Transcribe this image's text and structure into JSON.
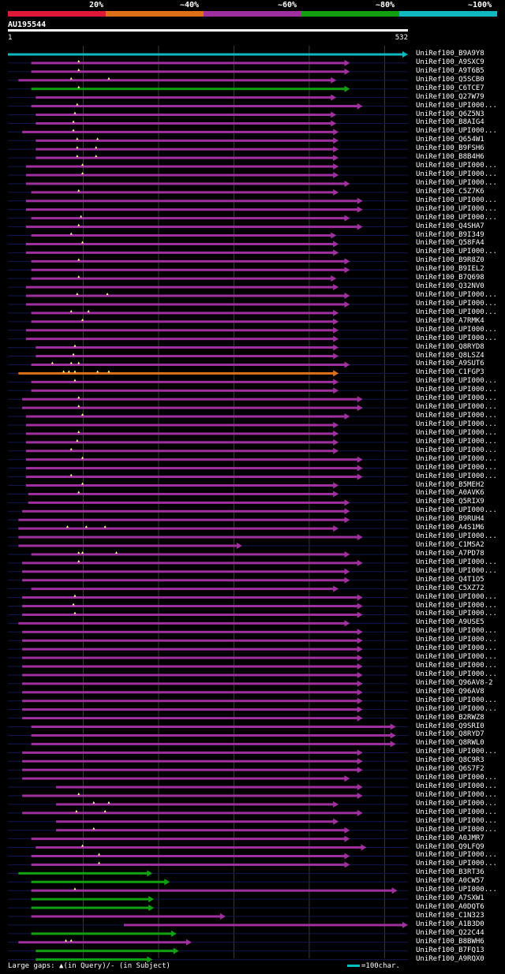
{
  "scale": {
    "labels": [
      "20%",
      "~40%",
      "~60%",
      "~80%",
      "~100%"
    ],
    "colors": [
      "#e01838",
      "#e07018",
      "#a030a0",
      "#10a010",
      "#10b8c0"
    ]
  },
  "query": {
    "name": "AU195544",
    "start": "1",
    "end": "532",
    "length": 532
  },
  "hits": [
    {
      "label": "UniRef100_B9A9Y8",
      "start": 1,
      "end": 532,
      "color": "#10b8c0"
    },
    {
      "label": "UniRef100_A9SXC9",
      "start": 32,
      "end": 455,
      "color": "#a030a0",
      "inserts": [
        95
      ]
    },
    {
      "label": "UniRef100_A9T6B5",
      "start": 32,
      "end": 455,
      "color": "#a030a0",
      "inserts": [
        95
      ]
    },
    {
      "label": "UniRef100_Q5SCB0",
      "start": 15,
      "end": 437,
      "color": "#a030a0",
      "inserts": [
        85,
        135
      ]
    },
    {
      "label": "UniRef100_C6TCE7",
      "start": 32,
      "end": 455,
      "color": "#10a010",
      "inserts": [
        95
      ]
    },
    {
      "label": "UniRef100_Q27W79",
      "start": 38,
      "end": 437,
      "color": "#a030a0"
    },
    {
      "label": "UniRef100_UPI000...",
      "start": 32,
      "end": 472,
      "color": "#a030a0",
      "inserts": [
        93
      ]
    },
    {
      "label": "UniRef100_Q6Z5N3",
      "start": 38,
      "end": 437,
      "color": "#a030a0",
      "inserts": [
        90
      ]
    },
    {
      "label": "UniRef100_B8AIG4",
      "start": 38,
      "end": 437,
      "color": "#a030a0",
      "inserts": [
        88
      ]
    },
    {
      "label": "UniRef100_UPI000...",
      "start": 20,
      "end": 440,
      "color": "#a030a0",
      "inserts": [
        88
      ]
    },
    {
      "label": "UniRef100_Q654W1",
      "start": 38,
      "end": 440,
      "color": "#a030a0",
      "inserts": [
        93,
        120
      ]
    },
    {
      "label": "UniRef100_B9FSH6",
      "start": 38,
      "end": 440,
      "color": "#a030a0",
      "inserts": [
        93,
        118
      ]
    },
    {
      "label": "UniRef100_B8B4H6",
      "start": 38,
      "end": 440,
      "color": "#a030a0",
      "inserts": [
        93,
        118
      ]
    },
    {
      "label": "UniRef100_UPI000...",
      "start": 25,
      "end": 440,
      "color": "#a030a0",
      "inserts": [
        100
      ]
    },
    {
      "label": "UniRef100_UPI000...",
      "start": 25,
      "end": 440,
      "color": "#a030a0",
      "inserts": [
        100
      ]
    },
    {
      "label": "UniRef100_UPI000...",
      "start": 25,
      "end": 455,
      "color": "#a030a0"
    },
    {
      "label": "UniRef100_C5Z7K6",
      "start": 32,
      "end": 440,
      "color": "#a030a0",
      "inserts": [
        95
      ]
    },
    {
      "label": "UniRef100_UPI000...",
      "start": 25,
      "end": 472,
      "color": "#a030a0"
    },
    {
      "label": "UniRef100_UPI000...",
      "start": 25,
      "end": 472,
      "color": "#a030a0"
    },
    {
      "label": "UniRef100_UPI000...",
      "start": 32,
      "end": 455,
      "color": "#a030a0",
      "inserts": [
        98
      ]
    },
    {
      "label": "UniRef100_Q4SHA7",
      "start": 25,
      "end": 472,
      "color": "#a030a0",
      "inserts": [
        95
      ]
    },
    {
      "label": "UniRef100_B9I349",
      "start": 32,
      "end": 437,
      "color": "#a030a0",
      "inserts": [
        85
      ]
    },
    {
      "label": "UniRef100_Q58FA4",
      "start": 25,
      "end": 440,
      "color": "#a030a0",
      "inserts": [
        100
      ]
    },
    {
      "label": "UniRef100_UPI000...",
      "start": 25,
      "end": 440,
      "color": "#a030a0"
    },
    {
      "label": "UniRef100_B9R8Z0",
      "start": 32,
      "end": 455,
      "color": "#a030a0",
      "inserts": [
        95
      ]
    },
    {
      "label": "UniRef100_B9IEL2",
      "start": 32,
      "end": 455,
      "color": "#a030a0"
    },
    {
      "label": "UniRef100_B7Q698",
      "start": 32,
      "end": 437,
      "color": "#a030a0",
      "inserts": [
        95
      ]
    },
    {
      "label": "UniRef100_Q32NV0",
      "start": 25,
      "end": 440,
      "color": "#a030a0"
    },
    {
      "label": "UniRef100_UPI000...",
      "start": 25,
      "end": 455,
      "color": "#a030a0",
      "inserts": [
        93,
        133
      ]
    },
    {
      "label": "UniRef100_UPI000...",
      "start": 25,
      "end": 455,
      "color": "#a030a0"
    },
    {
      "label": "UniRef100_UPI000...",
      "start": 32,
      "end": 440,
      "color": "#a030a0",
      "inserts": [
        85,
        108
      ]
    },
    {
      "label": "UniRef100_A7RMK4",
      "start": 32,
      "end": 440,
      "color": "#a030a0",
      "inserts": [
        100
      ]
    },
    {
      "label": "UniRef100_UPI000...",
      "start": 25,
      "end": 440,
      "color": "#a030a0"
    },
    {
      "label": "UniRef100_UPI000...",
      "start": 25,
      "end": 440,
      "color": "#a030a0"
    },
    {
      "label": "UniRef100_Q8RYD8",
      "start": 38,
      "end": 440,
      "color": "#a030a0",
      "inserts": [
        90
      ]
    },
    {
      "label": "UniRef100_Q8LSZ4",
      "start": 38,
      "end": 440,
      "color": "#a030a0",
      "inserts": [
        88
      ]
    },
    {
      "label": "UniRef100_A9SUT6",
      "start": 32,
      "end": 455,
      "color": "#a030a0",
      "inserts": [
        60,
        85,
        95
      ]
    },
    {
      "label": "UniRef100_C1FGP3",
      "start": 15,
      "end": 440,
      "color": "#e07018",
      "inserts": [
        75,
        82,
        90,
        120,
        135
      ]
    },
    {
      "label": "UniRef100_UPI000...",
      "start": 32,
      "end": 440,
      "color": "#a030a0",
      "inserts": [
        90
      ]
    },
    {
      "label": "UniRef100_UPI000...",
      "start": 32,
      "end": 440,
      "color": "#a030a0"
    },
    {
      "label": "UniRef100_UPI000...",
      "start": 20,
      "end": 472,
      "color": "#a030a0",
      "inserts": [
        95
      ]
    },
    {
      "label": "UniRef100_UPI000...",
      "start": 20,
      "end": 472,
      "color": "#a030a0",
      "inserts": [
        95
      ]
    },
    {
      "label": "UniRef100_UPI000...",
      "start": 25,
      "end": 455,
      "color": "#a030a0",
      "inserts": [
        100
      ]
    },
    {
      "label": "UniRef100_UPI000...",
      "start": 25,
      "end": 440,
      "color": "#a030a0"
    },
    {
      "label": "UniRef100_UPI000...",
      "start": 25,
      "end": 440,
      "color": "#a030a0",
      "inserts": [
        95
      ]
    },
    {
      "label": "UniRef100_UPI000...",
      "start": 25,
      "end": 440,
      "color": "#a030a0",
      "inserts": [
        93
      ]
    },
    {
      "label": "UniRef100_UPI000...",
      "start": 25,
      "end": 440,
      "color": "#a030a0",
      "inserts": [
        85
      ]
    },
    {
      "label": "UniRef100_UPI000...",
      "start": 25,
      "end": 472,
      "color": "#a030a0",
      "inserts": [
        100
      ]
    },
    {
      "label": "UniRef100_UPI000...",
      "start": 25,
      "end": 472,
      "color": "#a030a0"
    },
    {
      "label": "UniRef100_UPI000...",
      "start": 25,
      "end": 472,
      "color": "#a030a0",
      "inserts": [
        85
      ]
    },
    {
      "label": "UniRef100_B5MEH2",
      "start": 25,
      "end": 440,
      "color": "#a030a0",
      "inserts": [
        100
      ]
    },
    {
      "label": "UniRef100_A0AVK6",
      "start": 28,
      "end": 440,
      "color": "#a030a0",
      "inserts": [
        95
      ]
    },
    {
      "label": "UniRef100_Q5RIX9",
      "start": 28,
      "end": 455,
      "color": "#a030a0"
    },
    {
      "label": "UniRef100_UPI000...",
      "start": 20,
      "end": 455,
      "color": "#a030a0"
    },
    {
      "label": "UniRef100_B9RUH4",
      "start": 15,
      "end": 455,
      "color": "#a030a0"
    },
    {
      "label": "UniRef100_A4S1M6",
      "start": 15,
      "end": 440,
      "color": "#a030a0",
      "inserts": [
        80,
        105,
        130
      ]
    },
    {
      "label": "UniRef100_UPI000...",
      "start": 15,
      "end": 472,
      "color": "#a030a0"
    },
    {
      "label": "UniRef100_C1MSA2",
      "start": 15,
      "end": 312,
      "color": "#a030a0"
    },
    {
      "label": "UniRef100_A7PD78",
      "start": 32,
      "end": 455,
      "color": "#a030a0",
      "inserts": [
        95,
        100,
        145
      ]
    },
    {
      "label": "UniRef100_UPI000...",
      "start": 20,
      "end": 472,
      "color": "#a030a0",
      "inserts": [
        95
      ]
    },
    {
      "label": "UniRef100_UPI000...",
      "start": 20,
      "end": 455,
      "color": "#a030a0"
    },
    {
      "label": "UniRef100_Q4T1O5",
      "start": 20,
      "end": 455,
      "color": "#a030a0"
    },
    {
      "label": "UniRef100_C5XZ72",
      "start": 32,
      "end": 440,
      "color": "#a030a0"
    },
    {
      "label": "UniRef100_UPI000...",
      "start": 20,
      "end": 472,
      "color": "#a030a0",
      "inserts": [
        90
      ]
    },
    {
      "label": "UniRef100_UPI000...",
      "start": 20,
      "end": 472,
      "color": "#a030a0",
      "inserts": [
        88
      ]
    },
    {
      "label": "UniRef100_UPI000...",
      "start": 20,
      "end": 472,
      "color": "#a030a0",
      "inserts": [
        90
      ]
    },
    {
      "label": "UniRef100_A9USE5",
      "start": 15,
      "end": 455,
      "color": "#a030a0"
    },
    {
      "label": "UniRef100_UPI000...",
      "start": 20,
      "end": 472,
      "color": "#a030a0"
    },
    {
      "label": "UniRef100_UPI000...",
      "start": 20,
      "end": 472,
      "color": "#a030a0"
    },
    {
      "label": "UniRef100_UPI000...",
      "start": 20,
      "end": 472,
      "color": "#a030a0"
    },
    {
      "label": "UniRef100_UPI000...",
      "start": 20,
      "end": 472,
      "color": "#a030a0"
    },
    {
      "label": "UniRef100_UPI000...",
      "start": 20,
      "end": 472,
      "color": "#a030a0"
    },
    {
      "label": "UniRef100_UPI000...",
      "start": 20,
      "end": 472,
      "color": "#a030a0"
    },
    {
      "label": "UniRef100_Q96AV8-2",
      "start": 20,
      "end": 472,
      "color": "#a030a0"
    },
    {
      "label": "UniRef100_Q96AV8",
      "start": 20,
      "end": 472,
      "color": "#a030a0"
    },
    {
      "label": "UniRef100_UPI000...",
      "start": 20,
      "end": 472,
      "color": "#a030a0"
    },
    {
      "label": "UniRef100_UPI000...",
      "start": 20,
      "end": 472,
      "color": "#a030a0"
    },
    {
      "label": "UniRef100_B2RWZ8",
      "start": 20,
      "end": 472,
      "color": "#a030a0"
    },
    {
      "label": "UniRef100_Q9SRI0",
      "start": 32,
      "end": 516,
      "color": "#a030a0"
    },
    {
      "label": "UniRef100_Q8RYD7",
      "start": 32,
      "end": 516,
      "color": "#a030a0"
    },
    {
      "label": "UniRef100_Q8RWL0",
      "start": 32,
      "end": 516,
      "color": "#a030a0"
    },
    {
      "label": "UniRef100_UPI000...",
      "start": 20,
      "end": 472,
      "color": "#a030a0"
    },
    {
      "label": "UniRef100_Q8C9R3",
      "start": 20,
      "end": 472,
      "color": "#a030a0"
    },
    {
      "label": "UniRef100_Q6S7F2",
      "start": 20,
      "end": 472,
      "color": "#a030a0"
    },
    {
      "label": "UniRef100_UPI000...",
      "start": 20,
      "end": 455,
      "color": "#a030a0"
    },
    {
      "label": "UniRef100_UPI000...",
      "start": 65,
      "end": 472,
      "color": "#a030a0"
    },
    {
      "label": "UniRef100_UPI000...",
      "start": 20,
      "end": 472,
      "color": "#a030a0",
      "inserts": [
        95
      ]
    },
    {
      "label": "UniRef100_UPI000...",
      "start": 65,
      "end": 440,
      "color": "#a030a0",
      "inserts": [
        115,
        135
      ]
    },
    {
      "label": "UniRef100_UPI000...",
      "start": 20,
      "end": 472,
      "color": "#a030a0",
      "inserts": [
        92,
        130
      ]
    },
    {
      "label": "UniRef100_UPI000...",
      "start": 65,
      "end": 440,
      "color": "#a030a0"
    },
    {
      "label": "UniRef100_UPI000...",
      "start": 65,
      "end": 455,
      "color": "#a030a0",
      "inserts": [
        115
      ]
    },
    {
      "label": "UniRef100_A0JMR7",
      "start": 32,
      "end": 455,
      "color": "#a030a0"
    },
    {
      "label": "UniRef100_Q9LFQ9",
      "start": 38,
      "end": 477,
      "color": "#a030a0",
      "inserts": [
        100
      ]
    },
    {
      "label": "UniRef100_UPI000...",
      "start": 32,
      "end": 455,
      "color": "#a030a0",
      "inserts": [
        122
      ]
    },
    {
      "label": "UniRef100_UPI000...",
      "start": 32,
      "end": 455,
      "color": "#a030a0",
      "inserts": [
        122
      ]
    },
    {
      "label": "UniRef100_B3RT36",
      "start": 15,
      "end": 193,
      "color": "#10a010"
    },
    {
      "label": "UniRef100_A0CW57",
      "start": 32,
      "end": 216,
      "color": "#10a010"
    },
    {
      "label": "UniRef100_UPI000...",
      "start": 32,
      "end": 518,
      "color": "#a030a0",
      "inserts": [
        90
      ]
    },
    {
      "label": "UniRef100_A7SXW1",
      "start": 32,
      "end": 195,
      "color": "#10a010"
    },
    {
      "label": "UniRef100_A0DQT6",
      "start": 32,
      "end": 195,
      "color": "#10a010"
    },
    {
      "label": "UniRef100_C1N323",
      "start": 32,
      "end": 290,
      "color": "#a030a0"
    },
    {
      "label": "UniRef100_A1B3D0",
      "start": 155,
      "end": 532,
      "color": "#a030a0"
    },
    {
      "label": "UniRef100_Q22C44",
      "start": 32,
      "end": 225,
      "color": "#10a010"
    },
    {
      "label": "UniRef100_B8BWH6",
      "start": 15,
      "end": 245,
      "color": "#a030a0",
      "inserts": [
        78,
        85
      ]
    },
    {
      "label": "UniRef100_B7FQ13",
      "start": 38,
      "end": 228,
      "color": "#10a010"
    },
    {
      "label": "UniRef100_A9RQX0",
      "start": 38,
      "end": 193,
      "color": "#10a010"
    }
  ],
  "footer": {
    "text": "Large gaps: ▲(in Query)/- (in Subject)"
  },
  "legend": {
    "text": "=100char."
  }
}
